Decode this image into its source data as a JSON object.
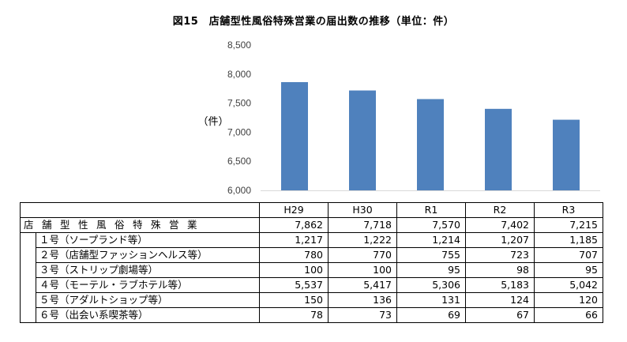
{
  "title": "図15　店舗型性風俗特殊営業の届出数の推移（単位：件）",
  "chart_data": {
    "type": "bar",
    "ylabel": "（件）",
    "ylim": [
      6000,
      8500
    ],
    "yticks": [
      "6,000",
      "6,500",
      "7,000",
      "7,500",
      "8,000",
      "8,500"
    ],
    "ytick_values": [
      6000,
      6500,
      7000,
      7500,
      8000,
      8500
    ],
    "grid": false,
    "bar_color": "#4f81bd",
    "categories": [
      "H29",
      "H30",
      "R1",
      "R2",
      "R3"
    ],
    "values": [
      7862,
      7718,
      7570,
      7402,
      7215
    ]
  },
  "table": {
    "columns": [
      "H29",
      "H30",
      "R1",
      "R2",
      "R3"
    ],
    "rows": [
      {
        "label": "店舗型性風俗特殊営業",
        "values": [
          "7,862",
          "7,718",
          "7,570",
          "7,402",
          "7,215"
        ]
      },
      {
        "label": "１号（ソープランド等）",
        "values": [
          "1,217",
          "1,222",
          "1,214",
          "1,207",
          "1,185"
        ]
      },
      {
        "label": "２号（店舗型ファッションヘルス等）",
        "values": [
          "780",
          "770",
          "755",
          "723",
          "707"
        ]
      },
      {
        "label": "３号（ストリップ劇場等）",
        "values": [
          "100",
          "100",
          "95",
          "98",
          "95"
        ]
      },
      {
        "label": "４号（モーテル・ラブホテル等）",
        "values": [
          "5,537",
          "5,417",
          "5,306",
          "5,183",
          "5,042"
        ]
      },
      {
        "label": "５号（アダルトショップ等）",
        "values": [
          "150",
          "136",
          "131",
          "124",
          "120"
        ]
      },
      {
        "label": "６号（出会い系喫茶等）",
        "values": [
          "78",
          "73",
          "69",
          "67",
          "66"
        ]
      }
    ]
  }
}
